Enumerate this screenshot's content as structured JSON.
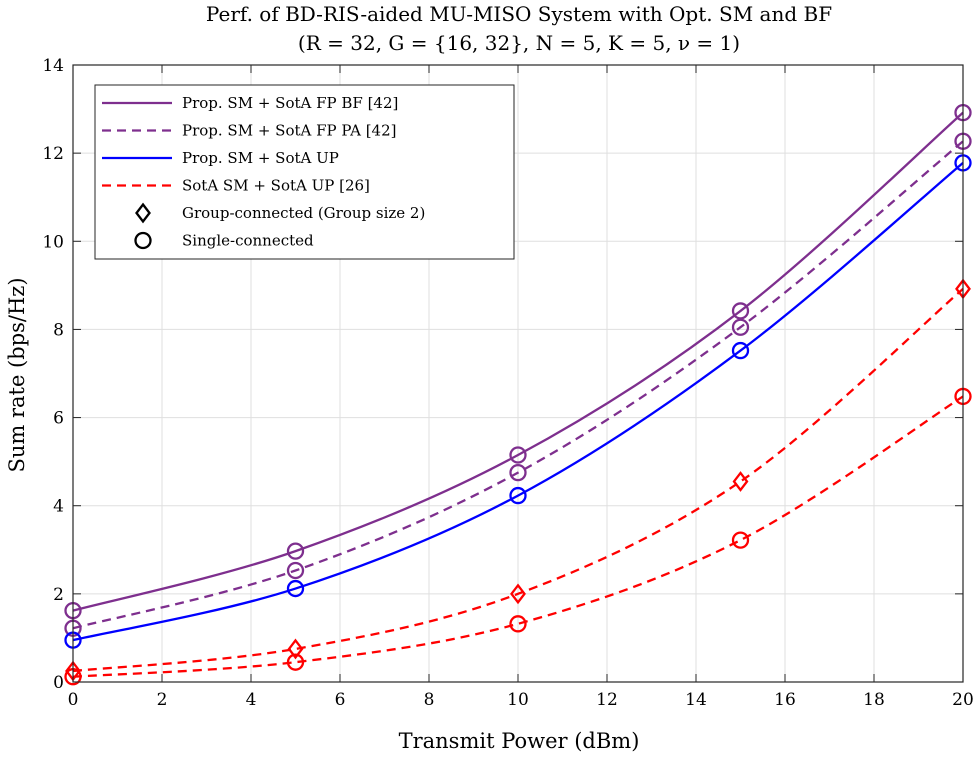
{
  "chart_data": {
    "type": "line",
    "title": "Perf. of BD-RIS-aided MU-MISO System with Opt. SM and BF",
    "subtitle": "(R = 32,  G = {16, 32},  N = 5,  K = 5,  ν = 1)",
    "xlabel": "Transmit Power (dBm)",
    "ylabel": "Sum rate (bps/Hz)",
    "xlim": [
      0,
      20
    ],
    "ylim": [
      0,
      14
    ],
    "xticks": [
      0,
      2,
      4,
      6,
      8,
      10,
      12,
      14,
      16,
      18,
      20
    ],
    "yticks": [
      0,
      2,
      4,
      6,
      8,
      10,
      12,
      14
    ],
    "grid": true,
    "legend_position": "top-left",
    "x": [
      0,
      5,
      10,
      15,
      20
    ],
    "series": [
      {
        "name": "Prop. SM + SotA FP BF [42]",
        "color": "#7E2F8E",
        "dash": "solid",
        "single_connected": [
          1.62,
          2.97,
          5.15,
          8.42,
          12.92
        ]
      },
      {
        "name": "Prop. SM + SotA FP PA [42]",
        "color": "#7E2F8E",
        "dash": "dashed",
        "single_connected": [
          1.22,
          2.53,
          4.75,
          8.05,
          12.27
        ]
      },
      {
        "name": "Prop. SM + SotA UP",
        "color": "#0000FF",
        "dash": "solid",
        "single_connected": [
          0.95,
          2.12,
          4.23,
          7.52,
          11.78
        ]
      },
      {
        "name": "SotA SM + SotA UP [26]",
        "color": "#FF0000",
        "dash": "dashed",
        "group_connected": [
          0.25,
          0.75,
          2.0,
          4.55,
          8.92
        ],
        "single_connected": [
          0.12,
          0.45,
          1.32,
          3.22,
          6.48
        ]
      }
    ],
    "marker_legend": [
      {
        "marker": "diamond",
        "label": "Group-connected (Group size 2)"
      },
      {
        "marker": "circle",
        "label": "Single-connected"
      }
    ]
  }
}
